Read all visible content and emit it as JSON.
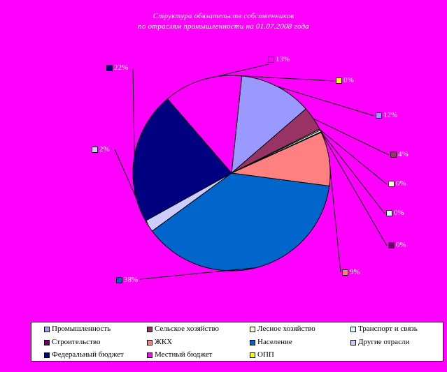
{
  "chart_data": {
    "type": "pie",
    "title_lines": [
      "Структура обязательств собственников",
      "по отраслям промышленности на 01.07.2008 года"
    ],
    "series": [
      {
        "name": "Промышленность",
        "value": 12,
        "label": "12%",
        "color": "#9999ff"
      },
      {
        "name": "Сельское хозяйство",
        "value": 4,
        "label": "4%",
        "color": "#993366"
      },
      {
        "name": "Лесное хозяйство",
        "value": 0.2,
        "label": "0%",
        "color": "#ffffcc"
      },
      {
        "name": "Транспорт и связь",
        "value": 0.3,
        "label": "0%",
        "color": "#ccffff"
      },
      {
        "name": "Строительство",
        "value": 0.1,
        "label": "0%",
        "color": "#660066"
      },
      {
        "name": "ЖКХ",
        "value": 9,
        "label": "9%",
        "color": "#ff8080"
      },
      {
        "name": "Население",
        "value": 38,
        "label": "38%",
        "color": "#0066cc"
      },
      {
        "name": "Другие отрасли",
        "value": 2,
        "label": "2%",
        "color": "#ccccff"
      },
      {
        "name": "Федеральный бюджет",
        "value": 22,
        "label": "22%",
        "color": "#000080"
      },
      {
        "name": "Местный бюджет",
        "value": 13,
        "label": "13%",
        "color": "#ff00ff"
      },
      {
        "name": "ОПП",
        "value": 0,
        "label": "0%",
        "color": "#ffff00"
      }
    ],
    "legend_position": "bottom"
  }
}
